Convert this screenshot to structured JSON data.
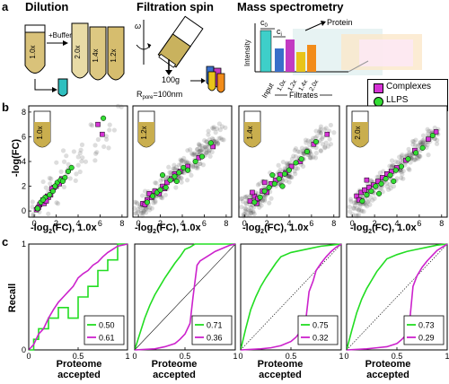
{
  "figure": {
    "panel_a": {
      "letter": "a",
      "dilution": {
        "title": "Dilution",
        "tubes": [
          "1.0x",
          "2.0x",
          "1.4x",
          "1.2x"
        ],
        "buffer_label": "+Buffer"
      },
      "filtration": {
        "title": "Filtration spin",
        "omega": "ω",
        "g_label": "100g",
        "pore_label_prefix": "R",
        "pore_label_sub": "pore",
        "pore_label_value": "=100nm"
      },
      "mass_spec": {
        "title": "Mass spectrometry",
        "c0": "c",
        "c0_sub": "0",
        "ci": "c",
        "ci_sub": "i",
        "protein_label": "Protein",
        "ylabel": "Intensity",
        "input_label": "Input",
        "x_ticks": [
          "1.0x",
          "1.2x",
          "1.4x",
          "2.0x"
        ],
        "filtrates_label": "Filtrates",
        "colors": [
          "#3a6fc9",
          "#c23bc2",
          "#e8c41a",
          "#f28c1a"
        ]
      }
    },
    "panel_b": {
      "letter": "b",
      "legend": [
        {
          "label": "Complexes",
          "color": "#d633d6",
          "marker": "square"
        },
        {
          "label": "LLPS",
          "color": "#33dd33",
          "marker": "circle"
        }
      ],
      "ylabel": "-log",
      "ylabel_suffix": "(FC)",
      "xlabel_prefix": "-log",
      "xlabel_sub": "2",
      "xlabel_suffix": "(FC), 1.0x",
      "x_ticks": [
        "0",
        "2",
        "4",
        "6",
        "8"
      ]
    },
    "panel_c": {
      "letter": "c",
      "ylabel": "Recall",
      "xlabel_line1": "Proteome",
      "xlabel_line2": "accepted",
      "x_ticks": [
        "0",
        "0.5",
        "1"
      ],
      "y_ticks": [
        "0",
        "1"
      ]
    }
  },
  "chart_data": [
    {
      "type": "scatter",
      "panel": "b-1",
      "tube_label": "1.0x",
      "xlim": [
        -0.5,
        8.5
      ],
      "ylim": [
        -0.5,
        8.5
      ],
      "grid": false,
      "series": [
        {
          "name": "Complexes",
          "x": [
            0.2,
            0.5,
            0.8,
            1.0,
            1.2,
            1.5,
            1.8,
            2.0,
            2.3,
            0.4,
            0.9,
            1.3,
            1.6,
            2.5,
            0.3,
            1.1,
            5.8,
            6.2
          ],
          "y": [
            0.1,
            0.5,
            0.9,
            1.0,
            1.2,
            1.3,
            1.9,
            2.0,
            2.2,
            0.3,
            0.6,
            1.1,
            1.8,
            2.6,
            0.2,
            0.8,
            7.0,
            6.2
          ]
        },
        {
          "name": "LLPS",
          "x": [
            0.3,
            0.6,
            1.0,
            1.4,
            1.7,
            2.1,
            2.4,
            2.8,
            3.1,
            0.8,
            1.9,
            2.6,
            3.4,
            6.3
          ],
          "y": [
            0.2,
            0.7,
            1.1,
            1.3,
            1.6,
            2.3,
            2.5,
            2.7,
            3.2,
            0.9,
            2.0,
            2.4,
            3.5,
            7.5
          ]
        }
      ]
    },
    {
      "type": "scatter",
      "panel": "b-2",
      "tube_label": "1.2x",
      "xlim": [
        -0.5,
        8.5
      ],
      "ylim": [
        -0.5,
        8.5
      ],
      "grid": false,
      "series": [
        {
          "name": "Complexes",
          "x": [
            0.4,
            0.8,
            1.2,
            1.5,
            1.9,
            2.2,
            2.6,
            3.0,
            3.3,
            3.8,
            4.5,
            5.5,
            6.8,
            1.0,
            2.4,
            0.6
          ],
          "y": [
            0.6,
            0.9,
            1.1,
            1.6,
            1.4,
            2.0,
            2.3,
            2.6,
            3.0,
            3.2,
            3.6,
            4.3,
            5.2,
            1.4,
            1.8,
            0.5
          ]
        },
        {
          "name": "LLPS",
          "x": [
            0.8,
            1.3,
            1.7,
            2.0,
            2.5,
            2.9,
            3.3,
            3.7,
            4.1,
            4.5,
            5.2,
            5.8,
            6.6,
            2.2,
            3.5
          ],
          "y": [
            0.7,
            1.2,
            1.5,
            1.7,
            1.9,
            2.5,
            2.8,
            3.1,
            3.5,
            3.3,
            4.0,
            4.4,
            5.5,
            2.9,
            2.4
          ]
        }
      ]
    },
    {
      "type": "scatter",
      "panel": "b-3",
      "tube_label": "1.4x",
      "xlim": [
        -0.5,
        8.5
      ],
      "ylim": [
        -0.5,
        8.5
      ],
      "grid": false,
      "series": [
        {
          "name": "Complexes",
          "x": [
            0.5,
            0.9,
            1.2,
            1.6,
            2.0,
            2.4,
            2.8,
            3.2,
            3.7,
            4.2,
            5.0,
            6.2,
            7.4,
            1.1,
            1.8,
            0.7
          ],
          "y": [
            0.8,
            1.2,
            1.0,
            1.6,
            1.5,
            2.2,
            2.5,
            2.9,
            3.1,
            3.6,
            4.0,
            5.4,
            6.2,
            0.6,
            2.3,
            1.5
          ]
        },
        {
          "name": "LLPS",
          "x": [
            0.9,
            1.4,
            1.8,
            2.2,
            2.7,
            3.1,
            3.6,
            4.0,
            4.6,
            5.1,
            5.6,
            6.4,
            2.5,
            3.4
          ],
          "y": [
            0.7,
            1.1,
            1.6,
            1.9,
            2.2,
            2.6,
            3.0,
            3.3,
            3.9,
            4.2,
            4.8,
            5.6,
            2.9,
            2.0
          ]
        }
      ]
    },
    {
      "type": "scatter",
      "panel": "b-4",
      "tube_label": "2.0x",
      "xlim": [
        -0.5,
        8.5
      ],
      "ylim": [
        -0.5,
        8.5
      ],
      "grid": false,
      "series": [
        {
          "name": "Complexes",
          "x": [
            0.4,
            0.8,
            1.1,
            1.5,
            1.9,
            2.3,
            2.7,
            3.1,
            3.5,
            4.0,
            4.8,
            5.6,
            6.8,
            7.5,
            1.3,
            0.6
          ],
          "y": [
            1.2,
            1.5,
            1.7,
            1.9,
            2.1,
            2.4,
            2.7,
            3.0,
            3.2,
            3.5,
            4.1,
            4.9,
            5.8,
            6.4,
            2.5,
            0.9
          ]
        },
        {
          "name": "LLPS",
          "x": [
            0.9,
            1.3,
            1.7,
            2.1,
            2.6,
            3.0,
            3.4,
            3.9,
            4.4,
            5.0,
            5.7,
            6.3,
            7.2,
            2.4,
            3.7
          ],
          "y": [
            0.8,
            1.3,
            1.6,
            2.0,
            2.2,
            2.6,
            2.9,
            3.3,
            3.6,
            4.2,
            4.7,
            5.1,
            6.1,
            1.4,
            2.4
          ]
        }
      ]
    },
    {
      "type": "line",
      "panel": "c-1",
      "xlim": [
        0,
        1
      ],
      "ylim": [
        0,
        1
      ],
      "diagonal": false,
      "series": [
        {
          "name": "0.50",
          "color": "#22dd22",
          "x": [
            0,
            0.05,
            0.05,
            0.1,
            0.1,
            0.2,
            0.2,
            0.3,
            0.3,
            0.4,
            0.4,
            0.5,
            0.5,
            0.6,
            0.6,
            0.7,
            0.7,
            0.8,
            0.8,
            0.9,
            0.9,
            1.0
          ],
          "y": [
            0,
            0,
            0.1,
            0.1,
            0.2,
            0.2,
            0.3,
            0.3,
            0.4,
            0.4,
            0.3,
            0.3,
            0.5,
            0.5,
            0.6,
            0.6,
            0.75,
            0.75,
            0.85,
            0.85,
            1.0,
            1.0
          ]
        },
        {
          "name": "0.61",
          "color": "#cc22cc",
          "x": [
            0,
            0.05,
            0.1,
            0.15,
            0.2,
            0.25,
            0.3,
            0.35,
            0.4,
            0.45,
            0.5,
            0.55,
            0.6,
            0.65,
            0.7,
            0.75,
            0.8,
            0.85,
            0.9,
            1.0
          ],
          "y": [
            0,
            0.05,
            0.15,
            0.2,
            0.3,
            0.38,
            0.45,
            0.5,
            0.55,
            0.6,
            0.68,
            0.72,
            0.75,
            0.8,
            0.83,
            0.88,
            0.92,
            0.95,
            0.98,
            1.0
          ]
        }
      ]
    },
    {
      "type": "line",
      "panel": "c-2",
      "xlim": [
        0,
        1
      ],
      "ylim": [
        0,
        1
      ],
      "diagonal": true,
      "diagonal_style": "solid",
      "series": [
        {
          "name": "0.71",
          "color": "#22dd22",
          "x": [
            0,
            0.05,
            0.1,
            0.15,
            0.2,
            0.25,
            0.3,
            0.35,
            0.4,
            0.45,
            0.5,
            0.55,
            0.6,
            0.7,
            0.8,
            0.9,
            1.0
          ],
          "y": [
            0,
            0.15,
            0.3,
            0.42,
            0.52,
            0.6,
            0.68,
            0.75,
            0.82,
            0.88,
            0.95,
            0.97,
            1.0,
            1.0,
            1.0,
            1.0,
            1.0
          ]
        },
        {
          "name": "0.36",
          "color": "#cc22cc",
          "x": [
            0,
            0.2,
            0.3,
            0.4,
            0.45,
            0.5,
            0.55,
            0.58,
            0.62,
            0.65,
            0.7,
            0.75,
            0.8,
            0.85,
            0.9,
            0.95,
            1.0
          ],
          "y": [
            0,
            0.01,
            0.03,
            0.06,
            0.1,
            0.15,
            0.25,
            0.5,
            0.8,
            0.84,
            0.87,
            0.9,
            0.93,
            0.95,
            0.97,
            0.99,
            1.0
          ]
        }
      ]
    },
    {
      "type": "line",
      "panel": "c-3",
      "xlim": [
        0,
        1
      ],
      "ylim": [
        0,
        1
      ],
      "diagonal": true,
      "diagonal_style": "dotted",
      "series": [
        {
          "name": "0.75",
          "color": "#22dd22",
          "x": [
            0,
            0.05,
            0.1,
            0.15,
            0.2,
            0.25,
            0.3,
            0.35,
            0.4,
            0.5,
            0.6,
            0.7,
            0.8,
            0.9,
            1.0
          ],
          "y": [
            0,
            0.2,
            0.38,
            0.5,
            0.6,
            0.68,
            0.75,
            0.82,
            0.88,
            0.92,
            0.94,
            0.96,
            0.98,
            0.99,
            1.0
          ]
        },
        {
          "name": "0.32",
          "color": "#cc22cc",
          "x": [
            0,
            0.2,
            0.3,
            0.4,
            0.5,
            0.55,
            0.6,
            0.65,
            0.68,
            0.72,
            0.75,
            0.8,
            0.85,
            0.9,
            0.95,
            1.0
          ],
          "y": [
            0,
            0.01,
            0.02,
            0.04,
            0.08,
            0.12,
            0.18,
            0.3,
            0.55,
            0.65,
            0.75,
            0.82,
            0.88,
            0.93,
            0.97,
            1.0
          ]
        }
      ]
    },
    {
      "type": "line",
      "panel": "c-4",
      "xlim": [
        0,
        1
      ],
      "ylim": [
        0,
        1
      ],
      "diagonal": true,
      "diagonal_style": "dotted",
      "series": [
        {
          "name": "0.73",
          "color": "#22dd22",
          "x": [
            0,
            0.05,
            0.1,
            0.15,
            0.2,
            0.25,
            0.3,
            0.35,
            0.4,
            0.5,
            0.6,
            0.7,
            0.8,
            0.9,
            1.0
          ],
          "y": [
            0,
            0.18,
            0.35,
            0.48,
            0.58,
            0.66,
            0.74,
            0.8,
            0.86,
            0.9,
            0.93,
            0.95,
            0.97,
            0.99,
            1.0
          ]
        },
        {
          "name": "0.29",
          "color": "#cc22cc",
          "x": [
            0,
            0.2,
            0.3,
            0.4,
            0.5,
            0.55,
            0.6,
            0.63,
            0.66,
            0.7,
            0.75,
            0.8,
            0.85,
            0.9,
            0.95,
            1.0
          ],
          "y": [
            0,
            0.01,
            0.02,
            0.03,
            0.06,
            0.1,
            0.15,
            0.3,
            0.6,
            0.7,
            0.78,
            0.84,
            0.89,
            0.94,
            0.97,
            1.0
          ]
        }
      ]
    }
  ]
}
